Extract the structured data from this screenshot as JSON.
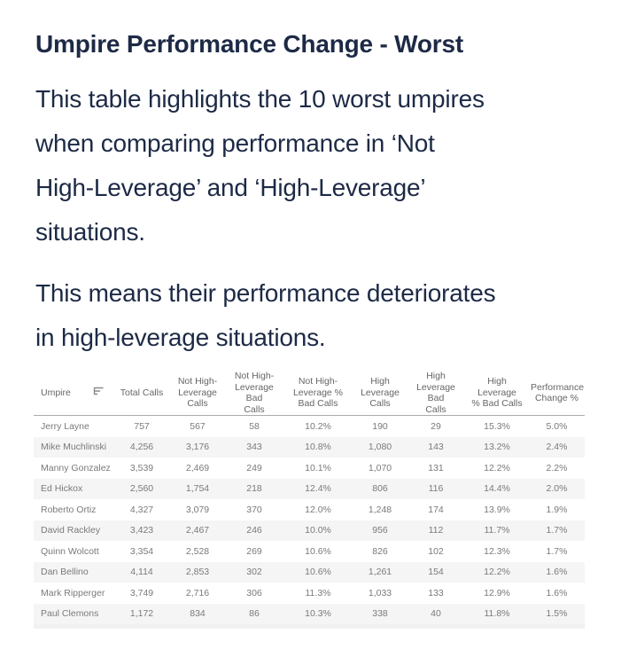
{
  "page": {
    "title": "Umpire Performance Change - Worst",
    "paragraph1": "This table highlights the 10 worst umpires\nwhen comparing performance in ‘Not\nHigh-Leverage’ and ‘High-Leverage’\nsituations.",
    "paragraph2": "This means their performance deteriorates\nin high-leverage situations."
  },
  "colors": {
    "body_text": "#1d2a46",
    "table_header_text": "#666666",
    "table_cell_text": "#7a7a7a",
    "row_band": "#f5f5f5",
    "header_border": "#ababab"
  },
  "table": {
    "sort_icon": "sort-descending-icon",
    "header_labels": [
      "Umpire",
      "Total Calls",
      "Not High-\nLeverage\nCalls",
      "Not High-\nLeverage Bad\nCalls",
      "Not High-\nLeverage %\nBad Calls",
      "High\nLeverage\nCalls",
      "High\nLeverage Bad\nCalls",
      "High Leverage\n% Bad Calls",
      "Performance\nChange %"
    ],
    "column_ids": [
      "umpire",
      "total-calls",
      "not-high-leverage-calls",
      "not-high-leverage-bad-calls",
      "not-high-leverage-pct-bad-calls",
      "high-leverage-calls",
      "high-leverage-bad-calls",
      "high-leverage-pct-bad-calls",
      "performance-change-pct"
    ]
  },
  "chart_data": {
    "type": "table",
    "title": "Umpire Performance Change - Worst",
    "columns": [
      "Umpire",
      "Total Calls",
      "Not High-Leverage Calls",
      "Not High-Leverage Bad Calls",
      "Not High-Leverage % Bad Calls",
      "High Leverage Calls",
      "High Leverage Bad Calls",
      "High Leverage % Bad Calls",
      "Performance Change %"
    ],
    "rows": [
      [
        "Jerry Layne",
        "757",
        "567",
        "58",
        "10.2%",
        "190",
        "29",
        "15.3%",
        "5.0%"
      ],
      [
        "Mike Muchlinski",
        "4,256",
        "3,176",
        "343",
        "10.8%",
        "1,080",
        "143",
        "13.2%",
        "2.4%"
      ],
      [
        "Manny Gonzalez",
        "3,539",
        "2,469",
        "249",
        "10.1%",
        "1,070",
        "131",
        "12.2%",
        "2.2%"
      ],
      [
        "Ed Hickox",
        "2,560",
        "1,754",
        "218",
        "12.4%",
        "806",
        "116",
        "14.4%",
        "2.0%"
      ],
      [
        "Roberto Ortiz",
        "4,327",
        "3,079",
        "370",
        "12.0%",
        "1,248",
        "174",
        "13.9%",
        "1.9%"
      ],
      [
        "David Rackley",
        "3,423",
        "2,467",
        "246",
        "10.0%",
        "956",
        "112",
        "11.7%",
        "1.7%"
      ],
      [
        "Quinn Wolcott",
        "3,354",
        "2,528",
        "269",
        "10.6%",
        "826",
        "102",
        "12.3%",
        "1.7%"
      ],
      [
        "Dan Bellino",
        "4,114",
        "2,853",
        "302",
        "10.6%",
        "1,261",
        "154",
        "12.2%",
        "1.6%"
      ],
      [
        "Mark Ripperger",
        "3,749",
        "2,716",
        "306",
        "11.3%",
        "1,033",
        "133",
        "12.9%",
        "1.6%"
      ],
      [
        "Paul Clemons",
        "1,172",
        "834",
        "86",
        "10.3%",
        "338",
        "40",
        "11.8%",
        "1.5%"
      ]
    ]
  }
}
